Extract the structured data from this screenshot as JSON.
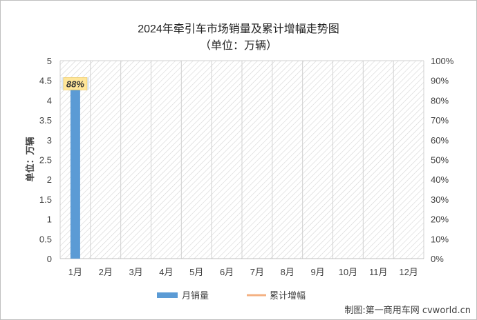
{
  "chart_data": {
    "type": "bar",
    "title": "2024年牵引车市场销量及累计增幅走势图",
    "subtitle": "（单位：万辆）",
    "ylabel": "单位：万辆",
    "categories": [
      "1月",
      "2月",
      "3月",
      "4月",
      "5月",
      "6月",
      "7月",
      "8月",
      "9月",
      "10月",
      "11月",
      "12月"
    ],
    "series": [
      {
        "name": "月销量",
        "type": "bar",
        "values": [
          4.58,
          null,
          null,
          null,
          null,
          null,
          null,
          null,
          null,
          null,
          null,
          null
        ],
        "color": "#5b9bd5"
      },
      {
        "name": "累计增幅",
        "type": "line",
        "axis": "right",
        "values": [
          88,
          null,
          null,
          null,
          null,
          null,
          null,
          null,
          null,
          null,
          null,
          null
        ],
        "color": "#f4b183"
      }
    ],
    "ylim": [
      0,
      5
    ],
    "yticks": [
      "0",
      "0.5",
      "1",
      "1.5",
      "2",
      "2.5",
      "3",
      "3.5",
      "4",
      "4.5",
      "5"
    ],
    "y2lim": [
      0,
      100
    ],
    "y2ticks": [
      "0%",
      "10%",
      "20%",
      "30%",
      "40%",
      "50%",
      "60%",
      "70%",
      "80%",
      "90%",
      "100%"
    ],
    "bar_label": "4.58",
    "line_label": "88%",
    "legend_position": "bottom"
  },
  "credit": "制图:第一商用车网 cvworld.cn"
}
